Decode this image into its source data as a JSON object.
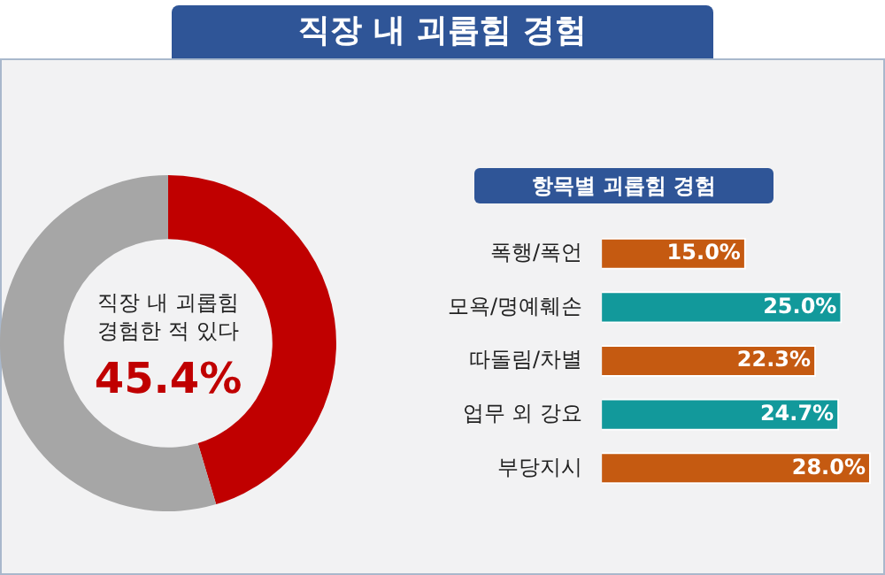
{
  "chart_data": [
    {
      "type": "donut",
      "title": "직장 내 괴롭힘 경험",
      "categories": [
        null,
        null
      ],
      "values": [
        45.4,
        54.6
      ],
      "colors": [
        "#c00000",
        "#a6a6a6"
      ],
      "annotations": [
        "직장 내 괴롭힘 경험한 적 있다",
        "45.4%"
      ],
      "legend": false
    },
    {
      "type": "bar",
      "orientation": "horizontal",
      "title": "항목별 괴롭힘 경험",
      "categories": [
        "폭행/폭언",
        "모욕/명예훼손",
        "따돌림/차별",
        "업무 외 강요",
        "부당지시"
      ],
      "values": [
        15.0,
        25.0,
        22.3,
        24.7,
        28.0
      ],
      "colors": [
        "#c55a11",
        "#12999b",
        "#c55a11",
        "#12999b",
        "#c55a11"
      ],
      "value_labels": [
        "15.0%",
        "25.0%",
        "22.3%",
        "24.7%",
        "28.0%"
      ],
      "xlim": [
        0,
        28
      ],
      "tick_labels": "y",
      "legend": false
    }
  ]
}
